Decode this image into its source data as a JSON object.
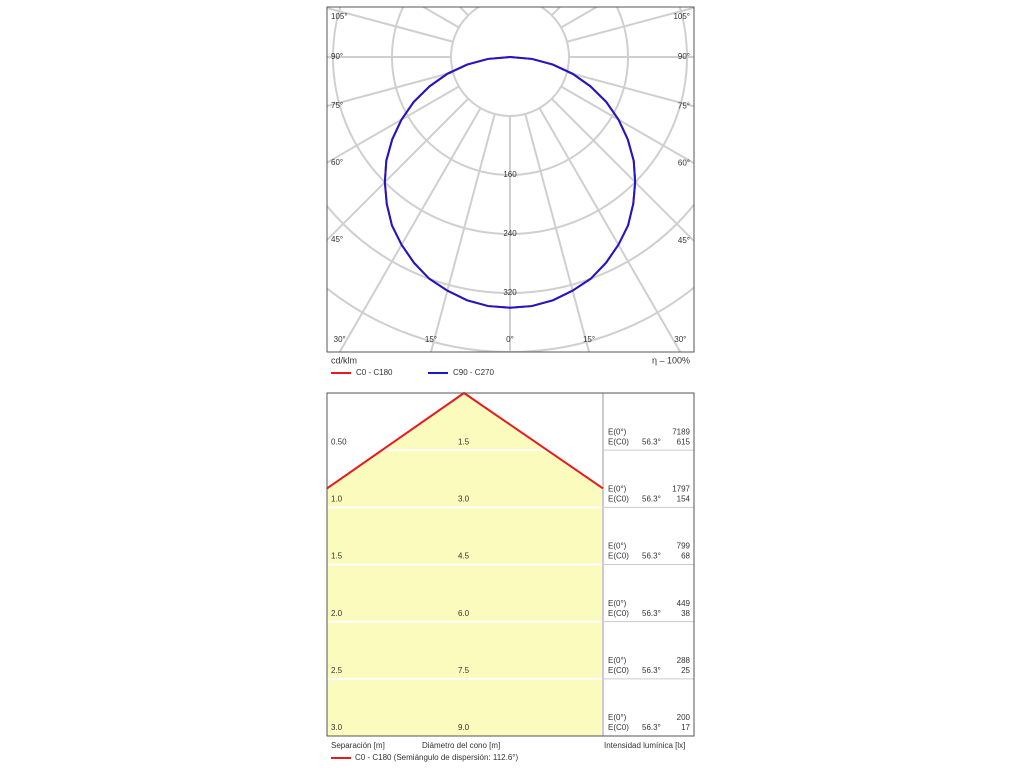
{
  "chart_data": [
    {
      "type": "polar",
      "unit_label": "cd/klm",
      "efficiency_label": "η – 100%",
      "rlim": [
        0,
        400
      ],
      "rticks": [
        160,
        240,
        320
      ],
      "angle_ticks": [
        {
          "value": -105,
          "label": "105°"
        },
        {
          "value": -90,
          "label": "90°"
        },
        {
          "value": -75,
          "label": "75°"
        },
        {
          "value": -60,
          "label": "60°"
        },
        {
          "value": -45,
          "label": "45°"
        },
        {
          "value": -30,
          "label": "30°"
        },
        {
          "value": -15,
          "label": "15°"
        },
        {
          "value": 0,
          "label": "0°"
        },
        {
          "value": 15,
          "label": "15°"
        },
        {
          "value": 30,
          "label": "30°"
        },
        {
          "value": 45,
          "label": "45°"
        },
        {
          "value": 60,
          "label": "60°"
        },
        {
          "value": 75,
          "label": "75°"
        },
        {
          "value": 90,
          "label": "90°"
        },
        {
          "value": 105,
          "label": "105°"
        }
      ],
      "x": [
        0,
        5,
        10,
        15,
        20,
        25,
        30,
        35,
        40,
        45,
        50,
        55,
        60,
        65,
        70,
        75,
        80,
        85,
        90
      ],
      "series": [
        {
          "name": "C0 - C180",
          "color": "#e8191f",
          "values": [
            340,
            339,
            335,
            328,
            320,
            308,
            294,
            279,
            260,
            240,
            219,
            195,
            170,
            144,
            116,
            88,
            59,
            30,
            0
          ]
        },
        {
          "name": "C90 - C270",
          "color": "#1c17c9",
          "values": [
            340,
            339,
            335,
            328,
            320,
            308,
            294,
            279,
            260,
            240,
            219,
            195,
            170,
            144,
            116,
            88,
            59,
            30,
            0
          ]
        }
      ]
    },
    {
      "type": "cone",
      "separation_label": "Separación [m]",
      "diameter_label": "Diámetro del cono [m]",
      "intensity_label": "Intensidad lumínica [lx]",
      "legend": {
        "name": "C0 - C180 (Semiángulo de dispersión: 112.6°)",
        "color": "#e8191f"
      },
      "rows": [
        {
          "separation": "0.50",
          "diameter": "1.5",
          "e0_label": "E(0°)",
          "ec0_label": "E(C0)",
          "angle": "56.3°",
          "e0": 7189,
          "ec0": 615
        },
        {
          "separation": "1.0",
          "diameter": "3.0",
          "e0_label": "E(0°)",
          "ec0_label": "E(C0)",
          "angle": "56.3°",
          "e0": 1797,
          "ec0": 154
        },
        {
          "separation": "1.5",
          "diameter": "4.5",
          "e0_label": "E(0°)",
          "ec0_label": "E(C0)",
          "angle": "56.3°",
          "e0": 799,
          "ec0": 68
        },
        {
          "separation": "2.0",
          "diameter": "6.0",
          "e0_label": "E(0°)",
          "ec0_label": "E(C0)",
          "angle": "56.3°",
          "e0": 449,
          "ec0": 38
        },
        {
          "separation": "2.5",
          "diameter": "7.5",
          "e0_label": "E(0°)",
          "ec0_label": "E(C0)",
          "angle": "56.3°",
          "e0": 288,
          "ec0": 25
        },
        {
          "separation": "3.0",
          "diameter": "9.0",
          "e0_label": "E(0°)",
          "ec0_label": "E(C0)",
          "angle": "56.3°",
          "e0": 200,
          "ec0": 17
        }
      ]
    }
  ]
}
